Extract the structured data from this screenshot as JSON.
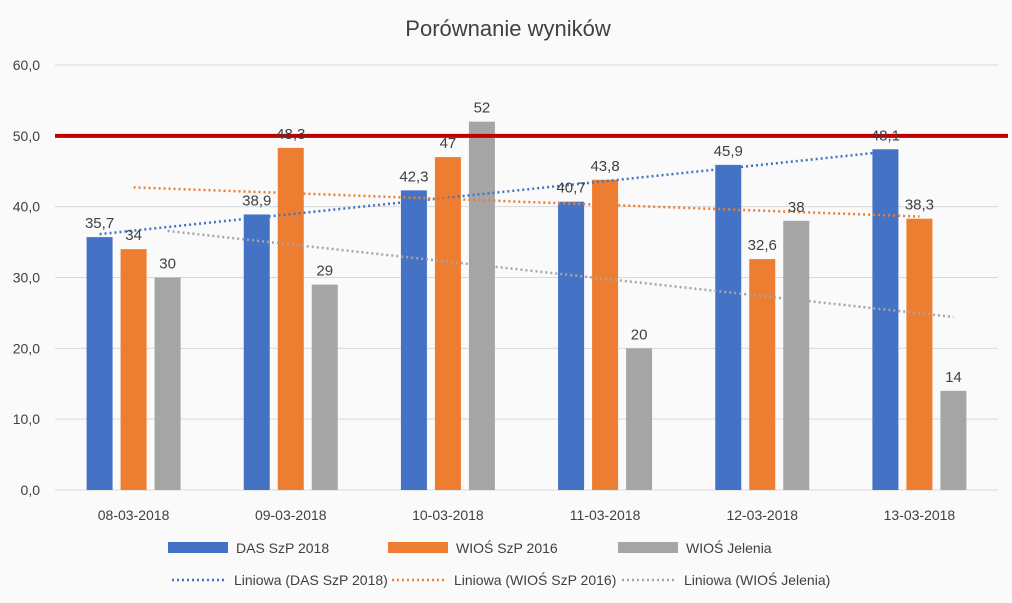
{
  "chart_data": {
    "type": "bar",
    "title": "Porównanie wyników",
    "categories": [
      "08-03-2018",
      "09-03-2018",
      "10-03-2018",
      "11-03-2018",
      "12-03-2018",
      "13-03-2018"
    ],
    "series": [
      {
        "name": "DAS SzP 2018",
        "color": "#4472c4",
        "values": [
          35.7,
          38.9,
          42.3,
          40.7,
          45.9,
          48.1
        ],
        "labels": [
          "35,7",
          "38,9",
          "42,3",
          "40,7",
          "45,9",
          "48,1"
        ]
      },
      {
        "name": "WIOŚ SzP 2016",
        "color": "#ed7d31",
        "values": [
          34,
          48.3,
          47,
          43.8,
          32.6,
          38.3
        ],
        "labels": [
          "34",
          "48,3",
          "47",
          "43,8",
          "32,6",
          "38,3"
        ]
      },
      {
        "name": "WIOŚ Jelenia",
        "color": "#a5a5a5",
        "values": [
          30,
          29,
          52,
          20,
          38,
          14
        ],
        "labels": [
          "30",
          "29",
          "52",
          "20",
          "38",
          "14"
        ]
      }
    ],
    "trendlines": [
      {
        "name": "Liniowa (DAS SzP 2018)",
        "color": "#4472c4"
      },
      {
        "name": "Liniowa (WIOŚ SzP 2016)",
        "color": "#ed7d31"
      },
      {
        "name": "Liniowa (WIOŚ Jelenia)",
        "color": "#a5a5a5"
      }
    ],
    "reference_line": {
      "value": 50,
      "color": "#c00000"
    },
    "ylim": [
      0,
      60
    ],
    "yticks": [
      0,
      10,
      20,
      30,
      40,
      50,
      60
    ],
    "ytick_labels": [
      "0,0",
      "10,0",
      "20,0",
      "30,0",
      "40,0",
      "50,0",
      "60,0"
    ],
    "grid": true,
    "legend_position": "bottom"
  }
}
